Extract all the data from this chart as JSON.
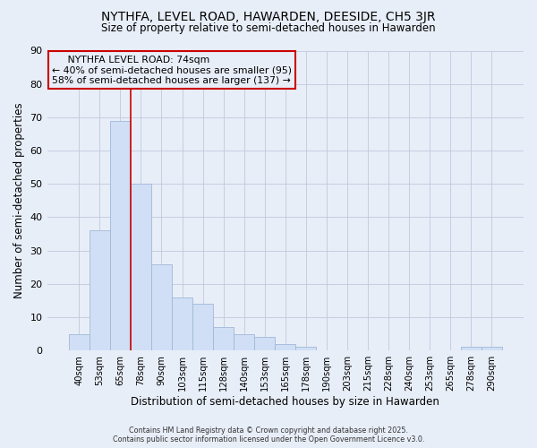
{
  "title": "NYTHFA, LEVEL ROAD, HAWARDEN, DEESIDE, CH5 3JR",
  "subtitle": "Size of property relative to semi-detached houses in Hawarden",
  "xlabel": "Distribution of semi-detached houses by size in Hawarden",
  "ylabel": "Number of semi-detached properties",
  "bar_labels": [
    "40sqm",
    "53sqm",
    "65sqm",
    "78sqm",
    "90sqm",
    "103sqm",
    "115sqm",
    "128sqm",
    "140sqm",
    "153sqm",
    "165sqm",
    "178sqm",
    "190sqm",
    "203sqm",
    "215sqm",
    "228sqm",
    "240sqm",
    "253sqm",
    "265sqm",
    "278sqm",
    "290sqm"
  ],
  "bar_values": [
    5,
    36,
    69,
    50,
    26,
    16,
    14,
    7,
    5,
    4,
    2,
    1,
    0,
    0,
    0,
    0,
    0,
    0,
    0,
    1,
    1
  ],
  "bar_color": "#d0dff5",
  "bar_edge_color": "#a0b8d8",
  "vline_color": "#cc0000",
  "background_color": "#e8eef8",
  "ylim": [
    0,
    90
  ],
  "yticks": [
    0,
    10,
    20,
    30,
    40,
    50,
    60,
    70,
    80,
    90
  ],
  "property_size": 74,
  "pct_smaller": 40,
  "count_smaller": 95,
  "pct_larger": 58,
  "count_larger": 137,
  "vline_index": 2.5,
  "footer_line1": "Contains HM Land Registry data © Crown copyright and database right 2025.",
  "footer_line2": "Contains public sector information licensed under the Open Government Licence v3.0."
}
